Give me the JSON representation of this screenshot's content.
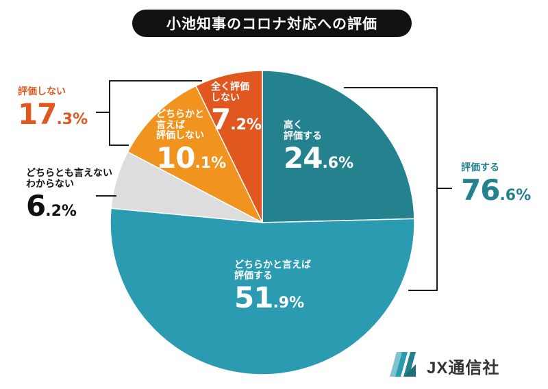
{
  "title": "小池知事のコロナ対応への評価",
  "chart_data": {
    "type": "pie",
    "title": "小池知事のコロナ対応への評価",
    "start": "12 o'clock, clockwise",
    "slices": [
      {
        "label": "高く\n評価する",
        "value": 24.6,
        "color": "#23828e"
      },
      {
        "label": "どちらかと言えば\n評価する",
        "value": 51.9,
        "color": "#2a9bb0"
      },
      {
        "label": "どちらとも言えない\nわからない",
        "value": 6.2,
        "color": "#dddddd"
      },
      {
        "label": "どちらかと\n言えば\n評価しない",
        "value": 10.1,
        "color": "#f0941f"
      },
      {
        "label": "全く評価\nしない",
        "value": 7.2,
        "color": "#e0571f"
      }
    ],
    "groups": [
      {
        "label": "評価する",
        "value": 76.6,
        "color": "#23828e"
      },
      {
        "label": "評価しない",
        "value": 17.3,
        "color": "#e0571f"
      }
    ]
  },
  "labels": {
    "s0": {
      "line1": "高く",
      "line2": "評価する",
      "int": "24",
      "dec": ".6%"
    },
    "s1": {
      "line1": "どちらかと言えば",
      "line2": "評価する",
      "int": "51",
      "dec": ".9%"
    },
    "s2": {
      "line1": "どちらとも言えない",
      "line2": "わからない",
      "int": "6",
      "dec": ".2%"
    },
    "s3": {
      "line1": "どちらかと",
      "line2": "言えば",
      "line3": "評価しない",
      "int": "10",
      "dec": ".1%"
    },
    "s4": {
      "line1": "全く評価",
      "line2": "しない",
      "int": "7",
      "dec": ".2%"
    },
    "g0": {
      "line1": "評価する",
      "int": "76",
      "dec": ".6%"
    },
    "g1": {
      "line1": "評価しない",
      "int": "17",
      "dec": ".3%"
    }
  },
  "logo": {
    "text": "JX通信社",
    "icon": "jx-logo-icon"
  }
}
